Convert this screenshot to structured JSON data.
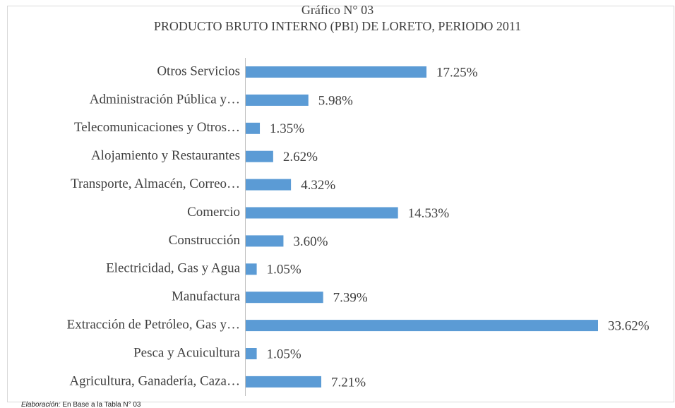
{
  "chart_data": {
    "type": "bar",
    "orientation": "horizontal",
    "title": "Gráfico N° 03",
    "subtitle": "PRODUCTO BRUTO INTERNO (PBI) DE LORETO, PERIODO 2011",
    "categories": [
      "Otros Servicios",
      "Administración Pública y…",
      "Telecomunicaciones y Otros…",
      "Alojamiento y Restaurantes",
      "Transporte, Almacén, Correo…",
      "Comercio",
      "Construcción",
      "Electricidad, Gas y Agua",
      "Manufactura",
      "Extracción de Petróleo, Gas y…",
      "Pesca y Acuicultura",
      "Agricultura, Ganadería, Caza…"
    ],
    "values": [
      17.25,
      5.98,
      1.35,
      2.62,
      4.32,
      14.53,
      3.6,
      1.05,
      7.39,
      33.62,
      1.05,
      7.21
    ],
    "value_labels": [
      "17.25%",
      "5.98%",
      "1.35%",
      "2.62%",
      "4.32%",
      "14.53%",
      "3.60%",
      "1.05%",
      "7.39%",
      "33.62%",
      "1.05%",
      "7.21%"
    ],
    "color": "#5b9bd5"
  },
  "source": {
    "label": "Elaboración:",
    "text": "En Base a la Tabla N° 03"
  }
}
